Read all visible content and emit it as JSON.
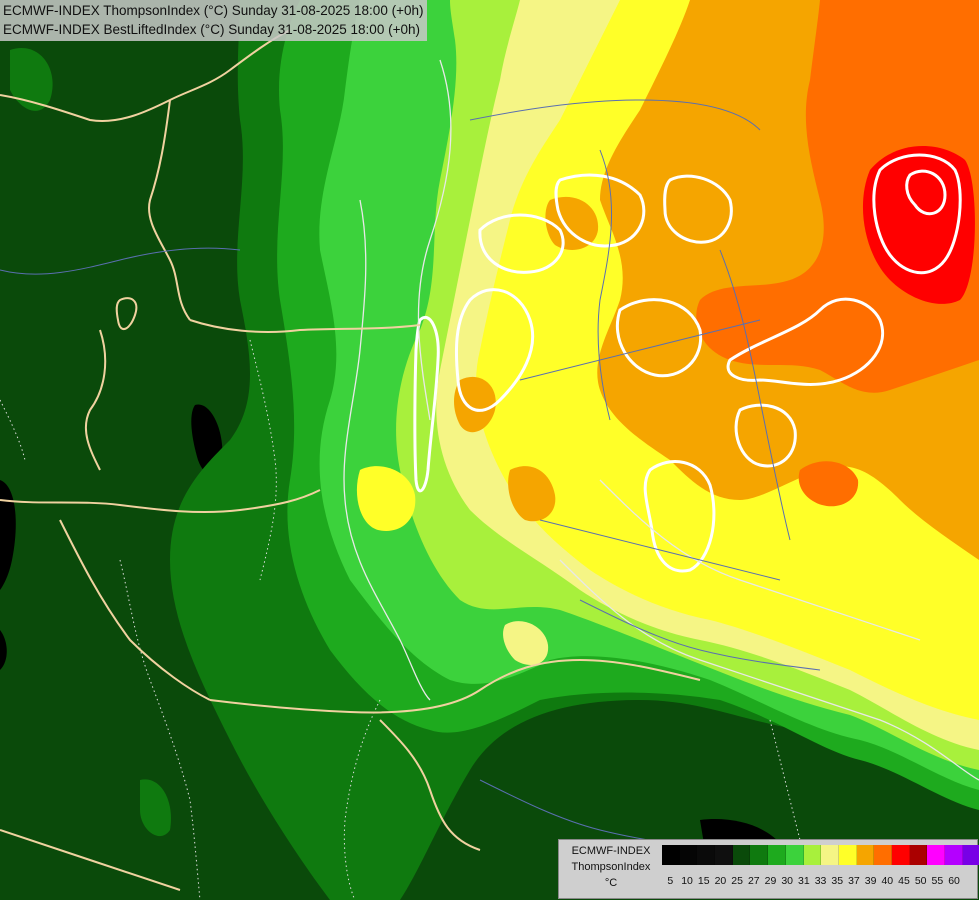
{
  "header": {
    "line1": "ECMWF-INDEX ThompsonIndex (°C) Sunday 31-08-2025 18:00 (+0h)",
    "line2": "ECMWF-INDEX BestLiftedIndex (°C) Sunday 31-08-2025 18:00 (+0h)"
  },
  "legend": {
    "model": "ECMWF-INDEX",
    "parameter": "ThompsonIndex",
    "unit": "°C",
    "levels": [
      {
        "label": "5",
        "color": "#000000"
      },
      {
        "label": "10",
        "color": "#050505"
      },
      {
        "label": "15",
        "color": "#0a0a0a"
      },
      {
        "label": "20",
        "color": "#0f0f0f"
      },
      {
        "label": "25",
        "color": "#0a4a0a"
      },
      {
        "label": "27",
        "color": "#0f7a0f"
      },
      {
        "label": "29",
        "color": "#1eaa1e"
      },
      {
        "label": "30",
        "color": "#3cd23c"
      },
      {
        "label": "31",
        "color": "#a8f03c"
      },
      {
        "label": "33",
        "color": "#f5f585"
      },
      {
        "label": "35",
        "color": "#ffff28"
      },
      {
        "label": "37",
        "color": "#f5a500"
      },
      {
        "label": "39",
        "color": "#ff6e00"
      },
      {
        "label": "40",
        "color": "#ff0000"
      },
      {
        "label": "45",
        "color": "#aa0000"
      },
      {
        "label": "50",
        "color": "#ff00ff"
      },
      {
        "label": "55",
        "color": "#b400ff"
      },
      {
        "label": "60",
        "color": "#7800e6"
      },
      {
        "label": "",
        "color": "#3c3cff"
      },
      {
        "label": "",
        "color": "#0000ff"
      }
    ]
  }
}
